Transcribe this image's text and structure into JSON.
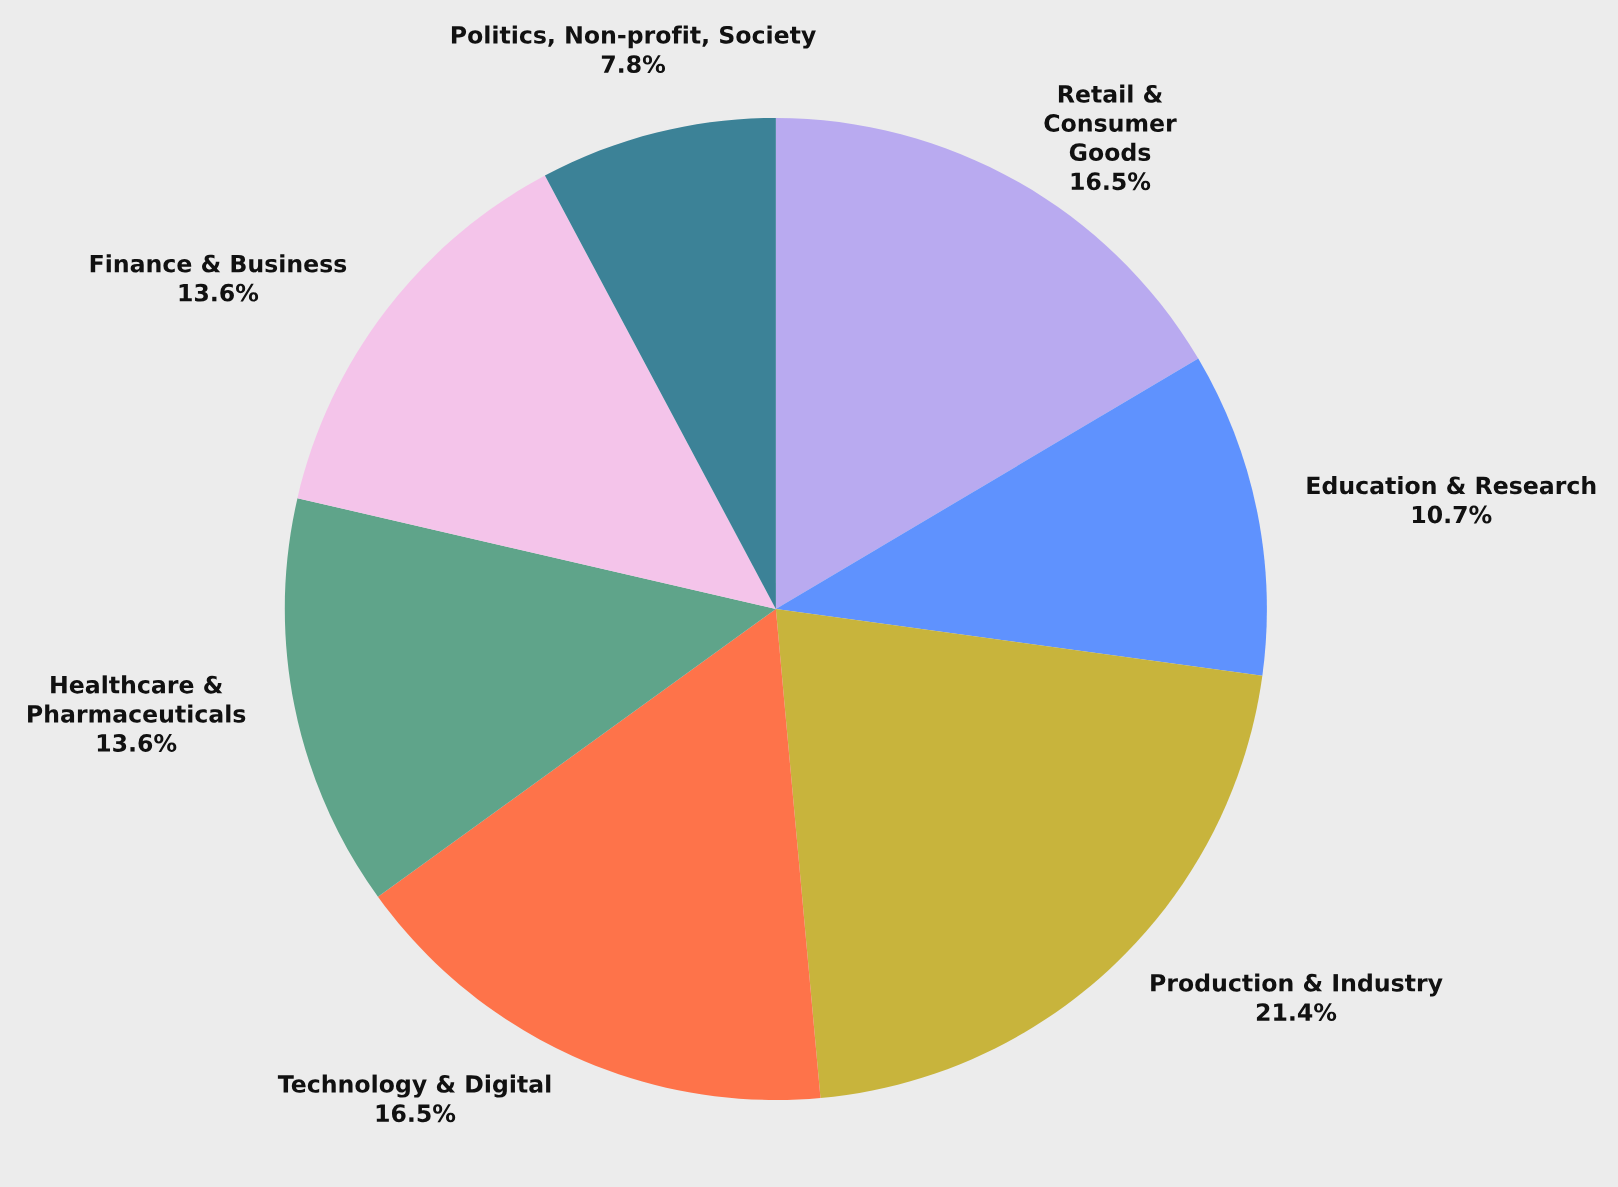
{
  "chart_data": {
    "type": "pie",
    "categories": [
      "Retail &\nConsumer\nGoods",
      "Education & Research",
      "Production & Industry",
      "Technology & Digital",
      "Healthcare &\nPharmaceuticals",
      "Finance & Business",
      "Politics, Non-profit, Society"
    ],
    "values": [
      16.5,
      10.7,
      21.4,
      16.5,
      13.6,
      13.6,
      7.8
    ],
    "value_labels": [
      "16.5%",
      "10.7%",
      "21.4%",
      "16.5%",
      "13.6%",
      "13.6%",
      "7.8%"
    ],
    "colors": [
      "#b9aaf0",
      "#5f92fe",
      "#c8b43c",
      "#fe734a",
      "#5fa48a",
      "#f4c4ea",
      "#3c8297"
    ],
    "legend": false
  }
}
